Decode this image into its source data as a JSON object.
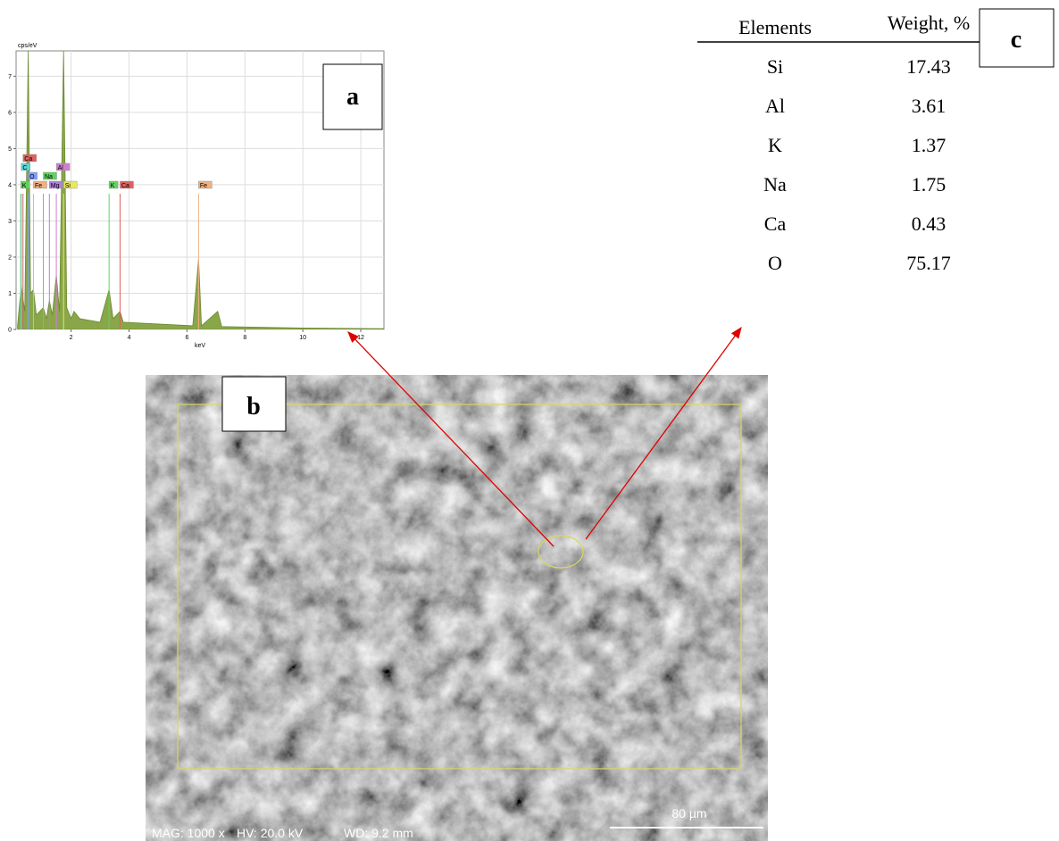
{
  "panels": {
    "a": "a",
    "b": "b",
    "c": "c"
  },
  "chart_data": {
    "type": "area",
    "y_label": "cps/eV",
    "x_label": "keV",
    "xlim": [
      0.1,
      12.8
    ],
    "ylim": [
      0,
      7.7
    ],
    "xticks": [
      2,
      4,
      6,
      8,
      10,
      12
    ],
    "yticks": [
      0,
      1,
      2,
      3,
      4,
      5,
      6,
      7
    ],
    "grid": true,
    "color": "#8aa64a",
    "x": [
      0.15,
      0.28,
      0.4,
      0.52,
      0.6,
      0.7,
      0.8,
      1.04,
      1.15,
      1.25,
      1.35,
      1.49,
      1.6,
      1.74,
      1.85,
      2.0,
      2.1,
      2.3,
      3.0,
      3.31,
      3.45,
      3.69,
      3.8,
      5.0,
      6.2,
      6.4,
      6.5,
      7.06,
      7.2,
      10.0,
      12.8
    ],
    "values": [
      0.1,
      1.2,
      0.5,
      7.7,
      1.0,
      1.1,
      0.4,
      0.6,
      0.3,
      0.8,
      0.4,
      1.5,
      0.5,
      7.7,
      0.6,
      0.3,
      0.5,
      0.3,
      0.2,
      1.1,
      0.3,
      0.5,
      0.2,
      0.15,
      0.1,
      1.95,
      0.1,
      0.5,
      0.08,
      0.04,
      0.02
    ],
    "markers": [
      {
        "label": "K",
        "x": 0.26,
        "color": "#5fd35f"
      },
      {
        "label": "O",
        "x": 0.52,
        "color": "#7f9fff"
      },
      {
        "label": "Mg",
        "x": 1.25,
        "color": "#b07fe0"
      },
      {
        "label": "C",
        "x": 0.28,
        "color": "#5fd3d3"
      },
      {
        "label": "Na",
        "x": 1.04,
        "color": "#5fd35f"
      },
      {
        "label": "Si",
        "x": 1.74,
        "color": "#e8e85f"
      },
      {
        "label": "Fe",
        "x": 0.7,
        "color": "#f0b080"
      },
      {
        "label": "Al",
        "x": 1.49,
        "color": "#d07fd0"
      },
      {
        "label": "K",
        "x": 3.31,
        "color": "#5fd35f"
      },
      {
        "label": "Ca",
        "x": 3.69,
        "color": "#e06060"
      },
      {
        "label": "Fe",
        "x": 6.4,
        "color": "#f0b080"
      },
      {
        "label": "Ca",
        "x": 0.34,
        "color": "#e06060"
      }
    ]
  },
  "sem": {
    "info": [
      "MAG: 1000 x",
      "HV: 20.0 kV",
      "WD: 9.2 mm"
    ],
    "scale_bar": "80 µm"
  },
  "table": {
    "header": [
      "Elements",
      "Weight, %"
    ],
    "rows": [
      [
        "Si",
        17.43
      ],
      [
        "Al",
        3.61
      ],
      [
        "K",
        1.37
      ],
      [
        "Na",
        1.75
      ],
      [
        "Ca",
        0.43
      ],
      [
        "O",
        75.17
      ]
    ]
  }
}
